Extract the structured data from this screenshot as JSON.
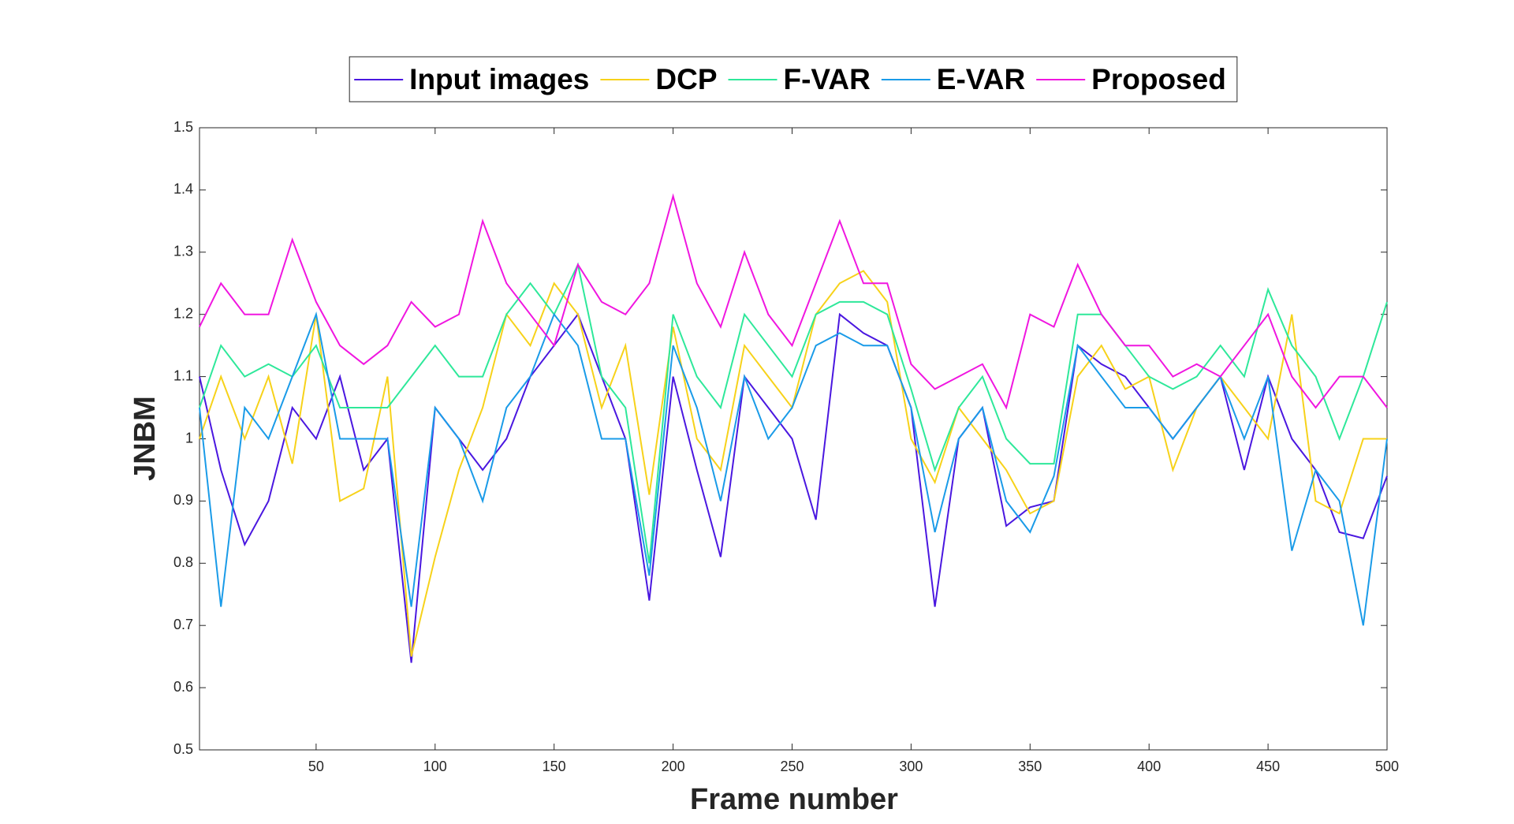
{
  "chart_data": {
    "type": "line",
    "xlabel": "Frame number",
    "ylabel": "JNBM",
    "x": [
      1,
      10,
      20,
      30,
      40,
      50,
      60,
      70,
      80,
      90,
      100,
      110,
      120,
      130,
      140,
      150,
      160,
      170,
      180,
      190,
      200,
      210,
      220,
      230,
      240,
      250,
      260,
      270,
      280,
      290,
      300,
      310,
      320,
      330,
      340,
      350,
      360,
      370,
      380,
      390,
      400,
      410,
      420,
      430,
      440,
      450,
      460,
      470,
      480,
      490,
      500
    ],
    "series": [
      {
        "name": "Input images",
        "color": "#4a17e0",
        "values": [
          1.1,
          0.95,
          0.83,
          0.9,
          1.05,
          1.0,
          1.1,
          0.95,
          1.0,
          0.64,
          1.05,
          1.0,
          0.95,
          1.0,
          1.1,
          1.15,
          1.2,
          1.1,
          1.0,
          0.74,
          1.1,
          0.95,
          0.81,
          1.1,
          1.05,
          1.0,
          0.87,
          1.2,
          1.17,
          1.15,
          1.05,
          0.73,
          1.0,
          1.05,
          0.86,
          0.89,
          0.9,
          1.15,
          1.12,
          1.1,
          1.05,
          1.0,
          1.05,
          1.1,
          0.95,
          1.1,
          1.0,
          0.95,
          0.85,
          0.84,
          0.94
        ]
      },
      {
        "name": "DCP",
        "color": "#f7d21a",
        "values": [
          1.0,
          1.1,
          1.0,
          1.1,
          0.96,
          1.2,
          0.9,
          0.92,
          1.1,
          0.65,
          0.81,
          0.95,
          1.05,
          1.2,
          1.15,
          1.25,
          1.2,
          1.05,
          1.15,
          0.91,
          1.18,
          1.0,
          0.95,
          1.15,
          1.1,
          1.05,
          1.2,
          1.25,
          1.27,
          1.22,
          1.0,
          0.93,
          1.05,
          1.0,
          0.95,
          0.88,
          0.9,
          1.1,
          1.15,
          1.08,
          1.1,
          0.95,
          1.05,
          1.1,
          1.05,
          1.0,
          1.2,
          0.9,
          0.88,
          1.0,
          1.0
        ]
      },
      {
        "name": "F-VAR",
        "color": "#2ee89a",
        "values": [
          1.05,
          1.15,
          1.1,
          1.12,
          1.1,
          1.15,
          1.05,
          1.05,
          1.05,
          1.1,
          1.15,
          1.1,
          1.1,
          1.2,
          1.25,
          1.2,
          1.28,
          1.1,
          1.05,
          0.8,
          1.2,
          1.1,
          1.05,
          1.2,
          1.15,
          1.1,
          1.2,
          1.22,
          1.22,
          1.2,
          1.08,
          0.95,
          1.05,
          1.1,
          1.0,
          0.96,
          0.96,
          1.2,
          1.2,
          1.15,
          1.1,
          1.08,
          1.1,
          1.15,
          1.1,
          1.24,
          1.15,
          1.1,
          1.0,
          1.1,
          1.22
        ]
      },
      {
        "name": "E-VAR",
        "color": "#1a9be8",
        "values": [
          1.05,
          0.73,
          1.05,
          1.0,
          1.1,
          1.2,
          1.0,
          1.0,
          1.0,
          0.73,
          1.05,
          1.0,
          0.9,
          1.05,
          1.1,
          1.2,
          1.15,
          1.0,
          1.0,
          0.78,
          1.15,
          1.05,
          0.9,
          1.1,
          1.0,
          1.05,
          1.15,
          1.17,
          1.15,
          1.15,
          1.05,
          0.85,
          1.0,
          1.05,
          0.9,
          0.85,
          0.94,
          1.15,
          1.1,
          1.05,
          1.05,
          1.0,
          1.05,
          1.1,
          1.0,
          1.1,
          0.82,
          0.95,
          0.9,
          0.7,
          1.0
        ]
      },
      {
        "name": "Proposed",
        "color": "#f016e0",
        "values": [
          1.18,
          1.25,
          1.2,
          1.2,
          1.32,
          1.22,
          1.15,
          1.12,
          1.15,
          1.22,
          1.18,
          1.2,
          1.35,
          1.25,
          1.2,
          1.15,
          1.28,
          1.22,
          1.2,
          1.25,
          1.39,
          1.25,
          1.18,
          1.3,
          1.2,
          1.15,
          1.25,
          1.35,
          1.25,
          1.25,
          1.12,
          1.08,
          1.1,
          1.12,
          1.05,
          1.2,
          1.18,
          1.28,
          1.2,
          1.15,
          1.15,
          1.1,
          1.12,
          1.1,
          1.15,
          1.2,
          1.1,
          1.05,
          1.1,
          1.1,
          1.05
        ]
      }
    ],
    "xlim": [
      1,
      500
    ],
    "xticks": [
      50,
      100,
      150,
      200,
      250,
      300,
      350,
      400,
      450,
      500
    ],
    "ylim": [
      0.5,
      1.5
    ],
    "yticks": [
      0.5,
      0.6,
      0.7,
      0.8,
      0.9,
      1,
      1.1,
      1.2,
      1.3,
      1.4,
      1.5
    ],
    "legend": "top"
  }
}
